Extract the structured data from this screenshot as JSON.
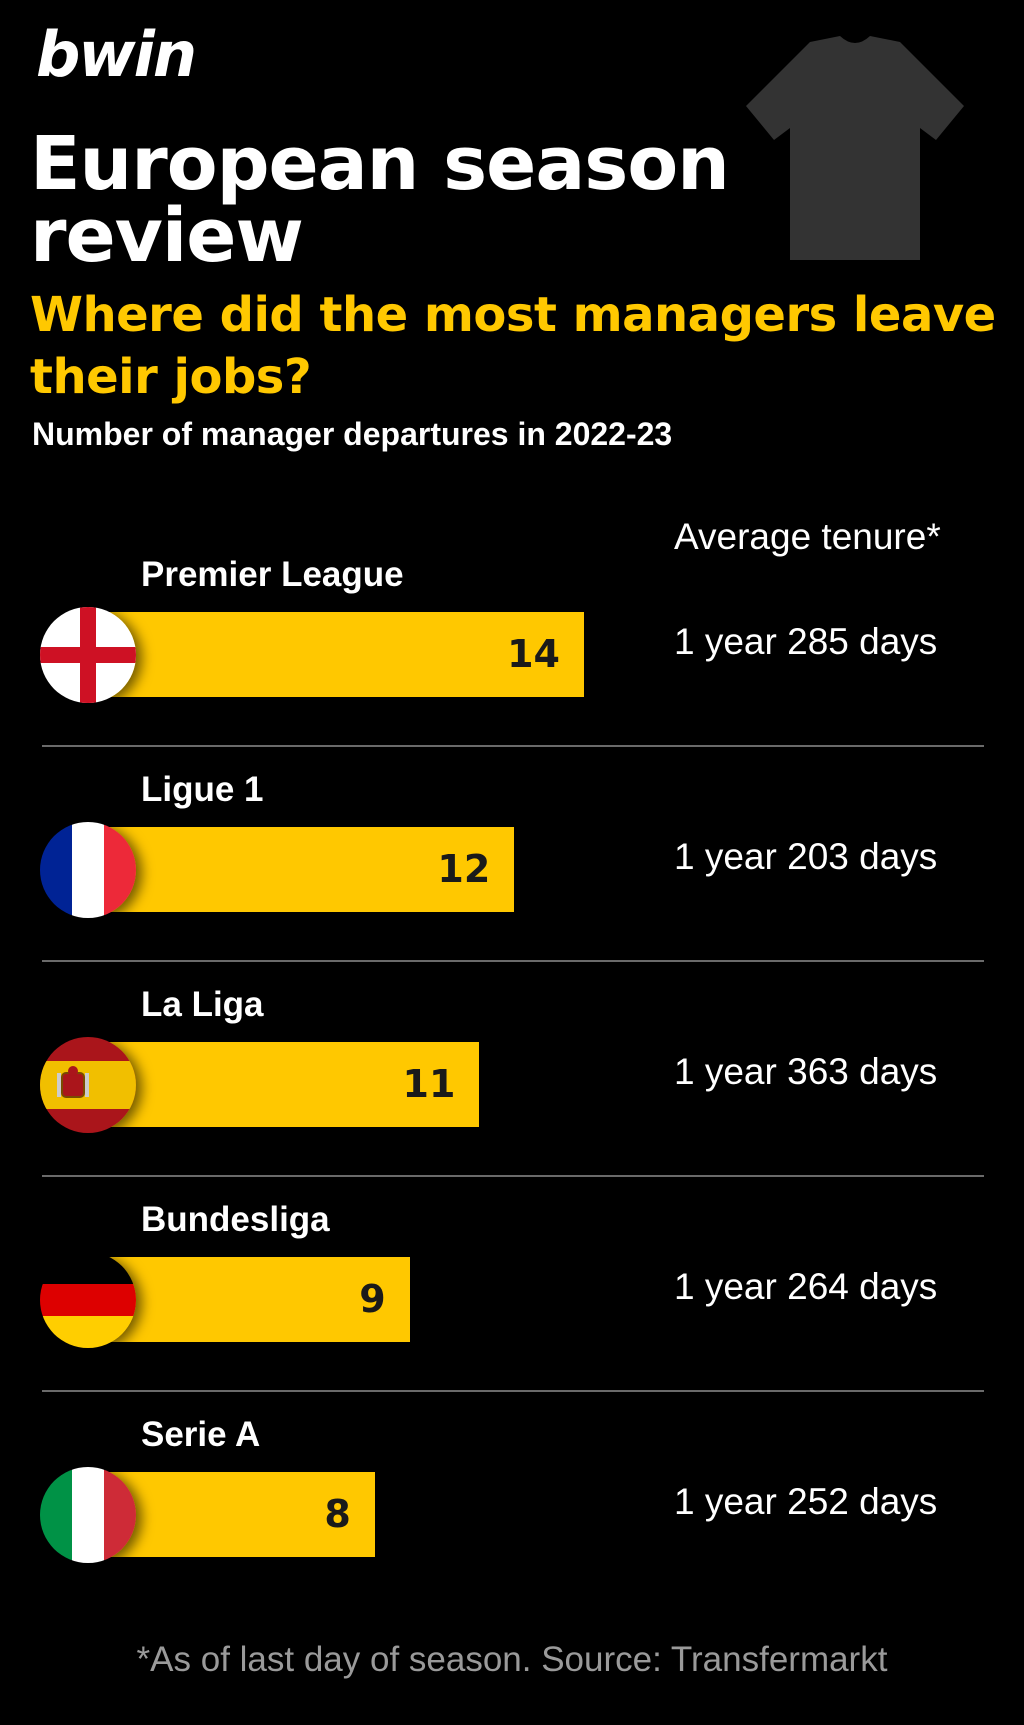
{
  "brand": {
    "logo_text": "bwin"
  },
  "header": {
    "title": "European season review",
    "subtitle": "Where did the most managers leave their jobs?",
    "description": "Number of manager departures in 2022-23",
    "tenure_column_label": "Average tenure*"
  },
  "footnote": "*As of last day of season. Source: Transfermarkt",
  "colors": {
    "bar": "#FFC800",
    "background": "#000000",
    "accent_text": "#FFC800",
    "shirt": "#333333"
  },
  "icons": {
    "shirt": "shirt-icon"
  },
  "chart_data": {
    "type": "bar",
    "orientation": "horizontal",
    "title": "European season review",
    "subtitle": "Where did the most managers leave their jobs?",
    "xlabel": "Number of manager departures in 2022-23",
    "ylabel": "",
    "grid": false,
    "xlim": [
      0,
      14
    ],
    "categories": [
      "Premier League",
      "Ligue 1",
      "La Liga",
      "Bundesliga",
      "Serie A"
    ],
    "values": [
      14,
      12,
      11,
      9,
      8
    ],
    "flags": [
      "england-flag-icon",
      "france-flag-icon",
      "spain-flag-icon",
      "germany-flag-icon",
      "italy-flag-icon"
    ],
    "annotations": [
      "1 year 285 days",
      "1 year 203 days",
      "1 year 363 days",
      "1 year 264 days",
      "1 year 252 days"
    ],
    "annotation_label": "Average tenure*"
  }
}
